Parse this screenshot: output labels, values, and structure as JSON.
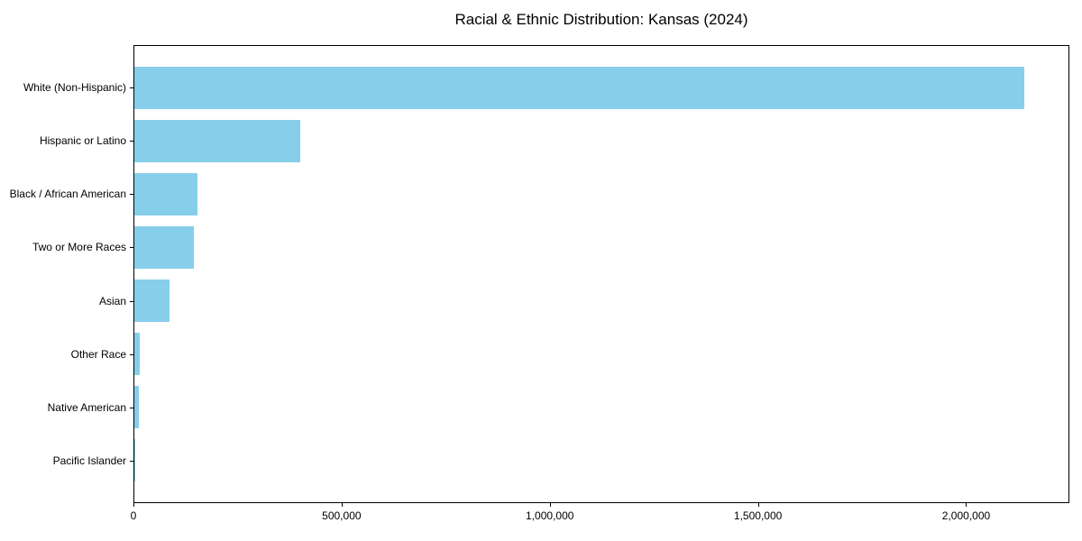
{
  "page": {
    "background_color": "#ffffff"
  },
  "chart_data": {
    "type": "bar",
    "orientation": "horizontal",
    "title": "Racial & Ethnic Distribution: Kansas (2024)",
    "categories": [
      "White (Non-Hispanic)",
      "Hispanic or Latino",
      "Black / African American",
      "Two or More Races",
      "Asian",
      "Other Race",
      "Native American",
      "Pacific Islander"
    ],
    "values": [
      2141000,
      400000,
      151000,
      143000,
      85000,
      12000,
      11500,
      2500
    ],
    "xlabel": "",
    "ylabel": "",
    "xlim": [
      0,
      2248000
    ],
    "x_ticks": [
      0,
      500000,
      1000000,
      1500000,
      2000000
    ],
    "x_tick_labels": [
      "0",
      "500,000",
      "1,000,000",
      "1,500,000",
      "2,000,000"
    ],
    "bar_color": "#87CEEB",
    "axis_color": "#000000",
    "text_color": "#000000",
    "grid": false,
    "legend_position": "none"
  }
}
